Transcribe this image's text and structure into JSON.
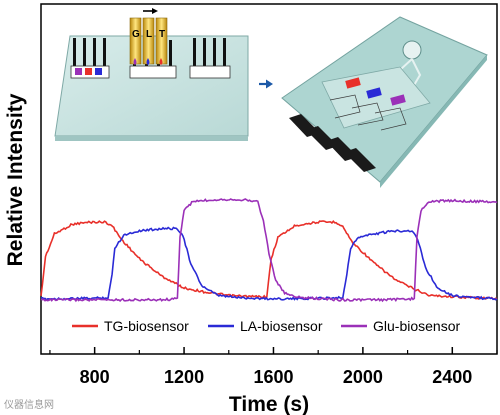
{
  "chart_data": {
    "type": "line",
    "title": "",
    "xlabel": "Time (s)",
    "ylabel": "Relative Intensity",
    "xlim": [
      560,
      2600
    ],
    "ylim": [
      0,
      1
    ],
    "x_ticks": [
      800,
      1200,
      1600,
      2000,
      2400
    ],
    "grid": false,
    "legend_position": "bottom",
    "series": [
      {
        "name": "TG-biosensor",
        "color": "#e8302a",
        "points": [
          [
            560,
            0.05
          ],
          [
            580,
            0.42
          ],
          [
            620,
            0.63
          ],
          [
            700,
            0.72
          ],
          [
            780,
            0.74
          ],
          [
            850,
            0.74
          ],
          [
            880,
            0.7
          ],
          [
            920,
            0.58
          ],
          [
            1000,
            0.4
          ],
          [
            1100,
            0.24
          ],
          [
            1200,
            0.13
          ],
          [
            1300,
            0.09
          ],
          [
            1400,
            0.06
          ],
          [
            1500,
            0.05
          ],
          [
            1570,
            0.05
          ],
          [
            1590,
            0.4
          ],
          [
            1620,
            0.6
          ],
          [
            1700,
            0.71
          ],
          [
            1800,
            0.74
          ],
          [
            1880,
            0.74
          ],
          [
            1910,
            0.7
          ],
          [
            1950,
            0.56
          ],
          [
            2050,
            0.36
          ],
          [
            2150,
            0.2
          ],
          [
            2230,
            0.12
          ],
          [
            2300,
            0.06
          ],
          [
            2400,
            0.05
          ],
          [
            2500,
            0.04
          ],
          [
            2600,
            0.03
          ]
        ]
      },
      {
        "name": "LA-biosensor",
        "color": "#2a2ad6",
        "points": [
          [
            560,
            0.03
          ],
          [
            700,
            0.03
          ],
          [
            860,
            0.04
          ],
          [
            878,
            0.25
          ],
          [
            890,
            0.5
          ],
          [
            930,
            0.62
          ],
          [
            1000,
            0.66
          ],
          [
            1100,
            0.68
          ],
          [
            1170,
            0.68
          ],
          [
            1195,
            0.62
          ],
          [
            1230,
            0.35
          ],
          [
            1280,
            0.15
          ],
          [
            1350,
            0.06
          ],
          [
            1450,
            0.04
          ],
          [
            1580,
            0.03
          ],
          [
            1700,
            0.03
          ],
          [
            1910,
            0.04
          ],
          [
            1928,
            0.26
          ],
          [
            1945,
            0.5
          ],
          [
            1980,
            0.6
          ],
          [
            2050,
            0.63
          ],
          [
            2150,
            0.66
          ],
          [
            2220,
            0.66
          ],
          [
            2245,
            0.58
          ],
          [
            2280,
            0.32
          ],
          [
            2330,
            0.14
          ],
          [
            2400,
            0.06
          ],
          [
            2500,
            0.04
          ],
          [
            2600,
            0.03
          ]
        ]
      },
      {
        "name": "Glu-biosensor",
        "color": "#9b30b8",
        "points": [
          [
            560,
            0.02
          ],
          [
            800,
            0.02
          ],
          [
            1100,
            0.02
          ],
          [
            1170,
            0.03
          ],
          [
            1182,
            0.6
          ],
          [
            1200,
            0.85
          ],
          [
            1240,
            0.93
          ],
          [
            1350,
            0.95
          ],
          [
            1450,
            0.95
          ],
          [
            1530,
            0.93
          ],
          [
            1555,
            0.75
          ],
          [
            1580,
            0.45
          ],
          [
            1610,
            0.2
          ],
          [
            1650,
            0.08
          ],
          [
            1720,
            0.04
          ],
          [
            1900,
            0.02
          ],
          [
            2100,
            0.02
          ],
          [
            2230,
            0.03
          ],
          [
            2242,
            0.6
          ],
          [
            2260,
            0.85
          ],
          [
            2300,
            0.93
          ],
          [
            2400,
            0.94
          ],
          [
            2500,
            0.93
          ],
          [
            2560,
            0.93
          ],
          [
            2600,
            0.92
          ]
        ]
      }
    ]
  },
  "inset": {
    "chip_letters": [
      "G",
      "L",
      "T"
    ]
  },
  "watermark": "仪器信息网"
}
